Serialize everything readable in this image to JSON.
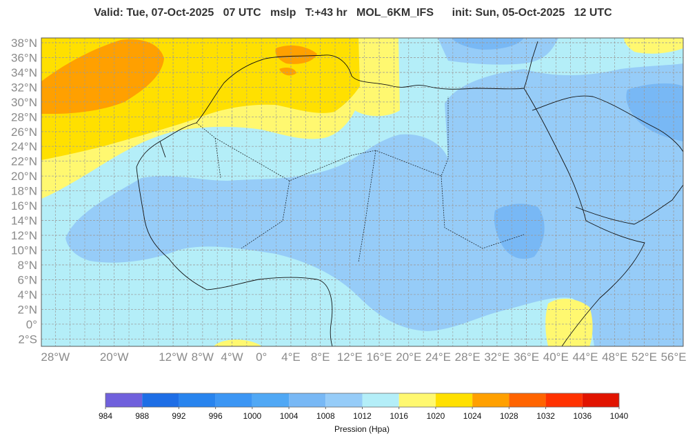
{
  "title": "Valid: Tue, 07-Oct-2025   07 UTC   mslp   T:+43 hr   MOL_6KM_IFS      init: Sun, 05-Oct-2025   12 UTC",
  "map": {
    "latticks": [
      {
        "value": 38,
        "label": "38°N"
      },
      {
        "value": 36,
        "label": "36°N"
      },
      {
        "value": 34,
        "label": "34°N"
      },
      {
        "value": 32,
        "label": "32°N"
      },
      {
        "value": 30,
        "label": "30°N"
      },
      {
        "value": 28,
        "label": "28°N"
      },
      {
        "value": 26,
        "label": "26°N"
      },
      {
        "value": 24,
        "label": "24°N"
      },
      {
        "value": 22,
        "label": "22°N"
      },
      {
        "value": 20,
        "label": "20°N"
      },
      {
        "value": 18,
        "label": "18°N"
      },
      {
        "value": 16,
        "label": "16°N"
      },
      {
        "value": 14,
        "label": "14°N"
      },
      {
        "value": 12,
        "label": "12°N"
      },
      {
        "value": 10,
        "label": "10°N"
      },
      {
        "value": 8,
        "label": "8°N"
      },
      {
        "value": 6,
        "label": "6°N"
      },
      {
        "value": 4,
        "label": "4°N"
      },
      {
        "value": 2,
        "label": "2°N"
      },
      {
        "value": 0,
        "label": "0°"
      },
      {
        "value": -2,
        "label": "2°S"
      }
    ],
    "lonticks": [
      {
        "value": -28,
        "label": "28°W"
      },
      {
        "value": -20,
        "label": "20°W"
      },
      {
        "value": -12,
        "label": "12°W"
      },
      {
        "value": -8,
        "label": "8°W"
      },
      {
        "value": -4,
        "label": "4°W"
      },
      {
        "value": 0,
        "label": "0°"
      },
      {
        "value": 4,
        "label": "4°E"
      },
      {
        "value": 8,
        "label": "8°E"
      },
      {
        "value": 12,
        "label": "12°E"
      },
      {
        "value": 16,
        "label": "16°E"
      },
      {
        "value": 20,
        "label": "20°E"
      },
      {
        "value": 24,
        "label": "24°E"
      },
      {
        "value": 28,
        "label": "28°E"
      },
      {
        "value": 32,
        "label": "32°E"
      },
      {
        "value": 36,
        "label": "36°E"
      },
      {
        "value": 40,
        "label": "40°E"
      },
      {
        "value": 44,
        "label": "44°E"
      },
      {
        "value": 48,
        "label": "48°E"
      },
      {
        "value": 52,
        "label": "52°E"
      },
      {
        "value": 56,
        "label": "56°E"
      }
    ]
  },
  "colorbar": {
    "ticks": [
      984,
      988,
      992,
      996,
      1000,
      1004,
      1008,
      1012,
      1016,
      1020,
      1024,
      1028,
      1032,
      1036,
      1040
    ],
    "colors": [
      "#7060dc",
      "#1e6ee6",
      "#2884ee",
      "#3c96f4",
      "#50a8f5",
      "#78b8f5",
      "#96ccf8",
      "#b4eef8",
      "#fff870",
      "#ffe000",
      "#ffa000",
      "#ff6400",
      "#ff3200",
      "#e11400"
    ],
    "label": "Pression (Hpa)"
  }
}
